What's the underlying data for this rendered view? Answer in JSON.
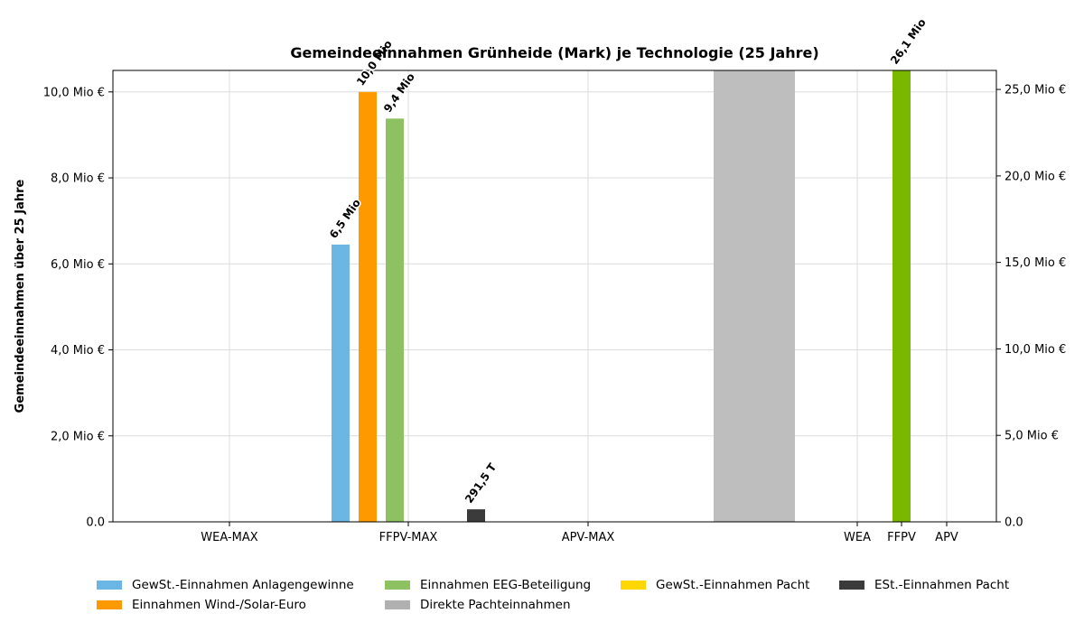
{
  "chart_data": {
    "type": "bar",
    "title": "Gemeindeeinnahmen Grünheide (Mark) je Technologie (25 Jahre)",
    "ylabel": "Gemeindeeinnahmen über 25 Jahre",
    "left_axis": {
      "ylim": [
        0,
        10500000
      ],
      "ticks": [
        0,
        2000000,
        4000000,
        6000000,
        8000000,
        10000000
      ],
      "tick_labels": [
        "0.0",
        "2,0 Mio €",
        "4,0 Mio €",
        "6,0 Mio €",
        "8,0 Mio €",
        "10,0 Mio €"
      ]
    },
    "right_axis": {
      "ylim": [
        0,
        26100000
      ],
      "ticks": [
        0,
        5000000,
        10000000,
        15000000,
        20000000,
        25000000
      ],
      "tick_labels": [
        "0.0",
        "5,0 Mio €",
        "10,0 Mio €",
        "15,0 Mio €",
        "20,0 Mio €",
        "25,0 Mio €"
      ]
    },
    "categories": [
      "WEA-MAX",
      "FFPV-MAX",
      "APV-MAX",
      "WEA",
      "FFPV",
      "APV"
    ],
    "grid": true,
    "legend_position": "bottom",
    "series": [
      {
        "name": "GewSt.-Einnahmen Anlagengewinne",
        "color": "#6cb6e3",
        "axis": "left",
        "values": [
          0,
          6450000,
          0,
          null,
          null,
          null
        ],
        "labels": [
          "",
          "6,5 Mio",
          "",
          "",
          "",
          ""
        ]
      },
      {
        "name": "Einnahmen Wind-/Solar-Euro",
        "color": "#ff9900",
        "axis": "left",
        "values": [
          0,
          10000000,
          0,
          null,
          null,
          null
        ],
        "labels": [
          "",
          "10,0 Mio",
          "",
          "",
          "",
          ""
        ]
      },
      {
        "name": "Einnahmen EEG-Beteiligung",
        "color": "#8ec162",
        "axis": "left",
        "values": [
          0,
          9380000,
          0,
          null,
          null,
          null
        ],
        "labels": [
          "",
          "9,4 Mio",
          "",
          "",
          "",
          ""
        ]
      },
      {
        "name": "Direkte Pachteinnahmen",
        "color": "#b0b0b0",
        "axis": "left",
        "values": [
          null,
          null,
          null,
          null,
          null,
          null
        ],
        "labels": [
          "",
          "",
          "",
          "",
          "",
          ""
        ]
      },
      {
        "name": "GewSt.-Einnahmen Pacht",
        "color": "#ffd700",
        "axis": "left",
        "values": [
          0,
          0,
          0,
          null,
          null,
          null
        ],
        "labels": [
          "",
          "",
          "",
          "",
          "",
          ""
        ]
      },
      {
        "name": "ESt.-Einnahmen Pacht",
        "color": "#3b3b3b",
        "axis": "left",
        "values": [
          0,
          291500,
          0,
          null,
          null,
          null
        ],
        "labels": [
          "",
          "291,5 T",
          "",
          "",
          "",
          ""
        ]
      },
      {
        "name": "",
        "color": "#7ab800",
        "axis": "right",
        "values": [
          null,
          null,
          null,
          0,
          26100000,
          0
        ],
        "labels": [
          "",
          "",
          "",
          "",
          "26,1 Mio",
          ""
        ]
      }
    ],
    "separator_band": {
      "color": "#bebebe"
    }
  }
}
